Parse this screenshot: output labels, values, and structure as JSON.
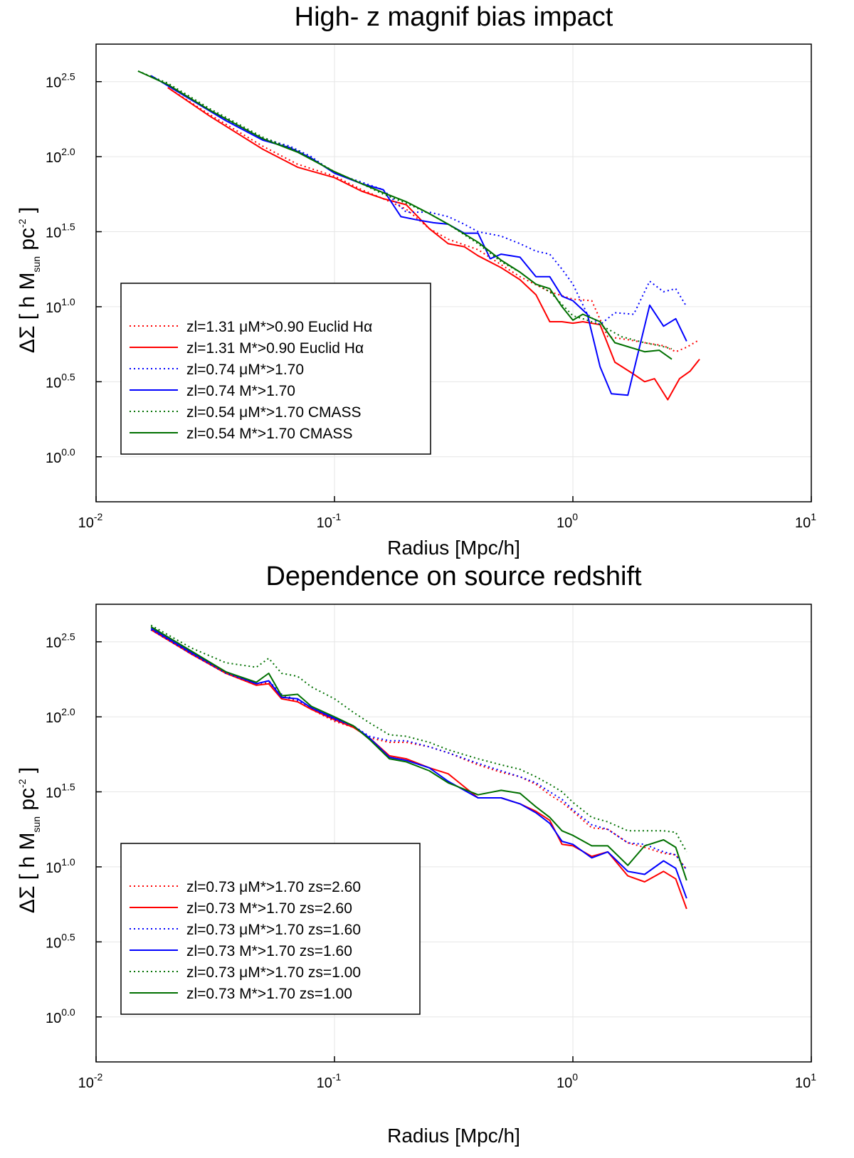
{
  "chart_data": [
    {
      "type": "line",
      "title": "High- z magnif bias impact",
      "xlabel": "Radius [Mpc/h]",
      "ylabel": "[ h M_sun pc^-2 ]",
      "ylabel_symbol": "ΔΣ",
      "ylabel_parts": {
        "open": "[ h M",
        "sub": "sun",
        "mid": " pc",
        "sup": "-2",
        "close": " ]"
      },
      "x_scale": "log10",
      "y_scale": "log10",
      "xlim": [
        0.01,
        10
      ],
      "ylim_log10": [
        -0.3,
        2.75
      ],
      "x_ticks": [
        {
          "base": "10",
          "exp": "-2",
          "value": 0.01
        },
        {
          "base": "10",
          "exp": "-1",
          "value": 0.1
        },
        {
          "base": "10",
          "exp": "0",
          "value": 1
        },
        {
          "base": "10",
          "exp": "1",
          "value": 10
        }
      ],
      "y_ticks": [
        {
          "base": "10",
          "exp": "0.0",
          "value": 0.0
        },
        {
          "base": "10",
          "exp": "0.5",
          "value": 0.5
        },
        {
          "base": "10",
          "exp": "1.0",
          "value": 1.0
        },
        {
          "base": "10",
          "exp": "1.5",
          "value": 1.5
        },
        {
          "base": "10",
          "exp": "2.0",
          "value": 2.0
        },
        {
          "base": "10",
          "exp": "2.5",
          "value": 2.5
        }
      ],
      "grid": true,
      "legend_position": "lower-left",
      "series": [
        {
          "name": "zl=1.31  μM*>0.90 Euclid Hα",
          "color": "#ff0000",
          "style": "dotted",
          "x": [
            0.02,
            0.03,
            0.05,
            0.07,
            0.1,
            0.13,
            0.16,
            0.2,
            0.25,
            0.3,
            0.4,
            0.5,
            0.6,
            0.8,
            1.0,
            1.2,
            1.4,
            1.7,
            2.0,
            2.4,
            2.7,
            3.0,
            3.4
          ],
          "log10_y": [
            2.46,
            2.28,
            2.07,
            1.95,
            1.87,
            1.78,
            1.72,
            1.65,
            1.52,
            1.45,
            1.38,
            1.28,
            1.2,
            1.1,
            1.05,
            1.04,
            0.8,
            0.78,
            0.76,
            0.74,
            0.7,
            0.73,
            0.78
          ]
        },
        {
          "name": "zl=1.31    M*>0.90 Euclid Hα",
          "color": "#ff0000",
          "style": "solid",
          "x": [
            0.02,
            0.03,
            0.05,
            0.07,
            0.1,
            0.13,
            0.16,
            0.2,
            0.25,
            0.3,
            0.35,
            0.4,
            0.5,
            0.6,
            0.7,
            0.8,
            0.9,
            1.0,
            1.1,
            1.3,
            1.5,
            1.8,
            2.0,
            2.2,
            2.5,
            2.8,
            3.1,
            3.4
          ],
          "log10_y": [
            2.46,
            2.27,
            2.05,
            1.93,
            1.86,
            1.77,
            1.72,
            1.68,
            1.52,
            1.42,
            1.4,
            1.34,
            1.26,
            1.18,
            1.08,
            0.9,
            0.9,
            0.89,
            0.9,
            0.88,
            0.63,
            0.55,
            0.5,
            0.52,
            0.38,
            0.52,
            0.57,
            0.65
          ]
        },
        {
          "name": "zl=0.74  μM*>1.70",
          "color": "#0000ff",
          "style": "dotted",
          "x": [
            0.017,
            0.025,
            0.035,
            0.05,
            0.065,
            0.08,
            0.1,
            0.13,
            0.16,
            0.2,
            0.25,
            0.3,
            0.35,
            0.4,
            0.5,
            0.6,
            0.7,
            0.8,
            0.9,
            1.0,
            1.15,
            1.3,
            1.5,
            1.8,
            2.1,
            2.4,
            2.7,
            3.0
          ],
          "log10_y": [
            2.54,
            2.38,
            2.25,
            2.12,
            2.07,
            2.0,
            1.89,
            1.83,
            1.78,
            1.63,
            1.63,
            1.6,
            1.55,
            1.5,
            1.47,
            1.42,
            1.37,
            1.35,
            1.25,
            1.15,
            0.95,
            0.88,
            0.96,
            0.95,
            1.17,
            1.1,
            1.12,
            1.0
          ]
        },
        {
          "name": "zl=0.74    M*>1.70",
          "color": "#0000ff",
          "style": "solid",
          "x": [
            0.017,
            0.025,
            0.035,
            0.05,
            0.065,
            0.08,
            0.1,
            0.13,
            0.16,
            0.19,
            0.22,
            0.26,
            0.3,
            0.35,
            0.4,
            0.45,
            0.5,
            0.6,
            0.7,
            0.8,
            0.9,
            1.0,
            1.15,
            1.3,
            1.45,
            1.7,
            2.1,
            2.4,
            2.7,
            3.0
          ],
          "log10_y": [
            2.54,
            2.38,
            2.24,
            2.11,
            2.06,
            1.99,
            1.89,
            1.82,
            1.78,
            1.6,
            1.58,
            1.56,
            1.55,
            1.49,
            1.49,
            1.32,
            1.35,
            1.33,
            1.2,
            1.2,
            1.07,
            1.04,
            0.95,
            0.6,
            0.42,
            0.41,
            1.01,
            0.87,
            0.92,
            0.77
          ]
        },
        {
          "name": "zl=0.54  μM*>1.70 CMASS",
          "color": "#007000",
          "style": "dotted",
          "x": [
            0.015,
            0.02,
            0.03,
            0.05,
            0.07,
            0.1,
            0.13,
            0.16,
            0.2,
            0.25,
            0.3,
            0.4,
            0.5,
            0.6,
            0.7,
            0.8,
            1.0,
            1.1,
            1.3,
            1.6,
            2.0,
            2.3,
            2.6
          ],
          "log10_y": [
            2.57,
            2.49,
            2.32,
            2.13,
            2.04,
            1.9,
            1.82,
            1.75,
            1.69,
            1.62,
            1.55,
            1.42,
            1.3,
            1.23,
            1.15,
            1.1,
            0.94,
            0.92,
            0.88,
            0.8,
            0.76,
            0.74,
            0.72
          ]
        },
        {
          "name": "zl=0.54    M*>1.70 CMASS",
          "color": "#007000",
          "style": "solid",
          "x": [
            0.015,
            0.02,
            0.03,
            0.05,
            0.07,
            0.1,
            0.13,
            0.16,
            0.2,
            0.25,
            0.3,
            0.4,
            0.5,
            0.6,
            0.7,
            0.8,
            0.9,
            1.0,
            1.1,
            1.3,
            1.5,
            2.0,
            2.3,
            2.6
          ],
          "log10_y": [
            2.57,
            2.48,
            2.31,
            2.12,
            2.03,
            1.9,
            1.82,
            1.76,
            1.7,
            1.62,
            1.55,
            1.43,
            1.31,
            1.23,
            1.15,
            1.12,
            1.0,
            0.91,
            0.95,
            0.9,
            0.76,
            0.7,
            0.71,
            0.65
          ]
        }
      ]
    },
    {
      "type": "line",
      "title": "Dependence on source redshift",
      "xlabel": "Radius [Mpc/h]",
      "ylabel": "[ h M_sun pc^-2 ]",
      "ylabel_symbol": "ΔΣ",
      "ylabel_parts": {
        "open": "[ h M",
        "sub": "sun",
        "mid": " pc",
        "sup": "-2",
        "close": " ]"
      },
      "x_scale": "log10",
      "y_scale": "log10",
      "xlim": [
        0.01,
        10
      ],
      "ylim_log10": [
        -0.3,
        2.75
      ],
      "x_ticks": [
        {
          "base": "10",
          "exp": "-2",
          "value": 0.01
        },
        {
          "base": "10",
          "exp": "-1",
          "value": 0.1
        },
        {
          "base": "10",
          "exp": "0",
          "value": 1
        },
        {
          "base": "10",
          "exp": "1",
          "value": 10
        }
      ],
      "y_ticks": [
        {
          "base": "10",
          "exp": "0.0",
          "value": 0.0
        },
        {
          "base": "10",
          "exp": "0.5",
          "value": 0.5
        },
        {
          "base": "10",
          "exp": "1.0",
          "value": 1.0
        },
        {
          "base": "10",
          "exp": "1.5",
          "value": 1.5
        },
        {
          "base": "10",
          "exp": "2.0",
          "value": 2.0
        },
        {
          "base": "10",
          "exp": "2.5",
          "value": 2.5
        }
      ],
      "grid": true,
      "legend_position": "lower-left",
      "series": [
        {
          "name": "zl=0.73  μM*>1.70 zs=2.60",
          "color": "#ff0000",
          "style": "dotted",
          "x": [
            0.017,
            0.025,
            0.035,
            0.047,
            0.053,
            0.06,
            0.07,
            0.08,
            0.1,
            0.12,
            0.14,
            0.17,
            0.2,
            0.25,
            0.3,
            0.4,
            0.5,
            0.6,
            0.7,
            0.8,
            0.9,
            1.0,
            1.2,
            1.4,
            1.7,
            2.0,
            2.4,
            2.7,
            3.0
          ],
          "log10_y": [
            2.58,
            2.42,
            2.29,
            2.21,
            2.23,
            2.14,
            2.1,
            2.05,
            1.97,
            1.93,
            1.86,
            1.83,
            1.83,
            1.8,
            1.76,
            1.68,
            1.63,
            1.6,
            1.55,
            1.48,
            1.43,
            1.37,
            1.26,
            1.25,
            1.16,
            1.13,
            1.09,
            1.08,
            0.98
          ]
        },
        {
          "name": "zl=0.73    M*>1.70 zs=2.60",
          "color": "#ff0000",
          "style": "solid",
          "x": [
            0.017,
            0.025,
            0.035,
            0.047,
            0.053,
            0.06,
            0.07,
            0.08,
            0.1,
            0.12,
            0.14,
            0.17,
            0.2,
            0.25,
            0.3,
            0.4,
            0.5,
            0.6,
            0.7,
            0.8,
            0.9,
            1.0,
            1.2,
            1.4,
            1.7,
            2.0,
            2.4,
            2.7,
            3.0
          ],
          "log10_y": [
            2.58,
            2.42,
            2.29,
            2.21,
            2.22,
            2.12,
            2.1,
            2.05,
            1.98,
            1.93,
            1.86,
            1.74,
            1.72,
            1.66,
            1.62,
            1.46,
            1.46,
            1.42,
            1.37,
            1.31,
            1.15,
            1.14,
            1.07,
            1.1,
            0.94,
            0.9,
            0.97,
            0.92,
            0.72
          ]
        },
        {
          "name": "zl=0.73  μM*>1.70 zs=1.60",
          "color": "#0000ff",
          "style": "dotted",
          "x": [
            0.017,
            0.025,
            0.035,
            0.047,
            0.053,
            0.06,
            0.07,
            0.08,
            0.1,
            0.12,
            0.14,
            0.17,
            0.2,
            0.25,
            0.3,
            0.4,
            0.5,
            0.6,
            0.7,
            0.8,
            0.9,
            1.0,
            1.2,
            1.4,
            1.7,
            2.0,
            2.4,
            2.7,
            3.0
          ],
          "log10_y": [
            2.58,
            2.42,
            2.29,
            2.22,
            2.24,
            2.15,
            2.11,
            2.06,
            1.98,
            1.94,
            1.87,
            1.84,
            1.84,
            1.8,
            1.76,
            1.69,
            1.64,
            1.6,
            1.56,
            1.5,
            1.45,
            1.38,
            1.28,
            1.25,
            1.16,
            1.15,
            1.1,
            1.08,
            0.98
          ]
        },
        {
          "name": "zl=0.73    M*>1.70 zs=1.60",
          "color": "#0000ff",
          "style": "solid",
          "x": [
            0.017,
            0.025,
            0.035,
            0.047,
            0.053,
            0.06,
            0.07,
            0.08,
            0.1,
            0.12,
            0.14,
            0.17,
            0.2,
            0.25,
            0.3,
            0.4,
            0.5,
            0.6,
            0.7,
            0.8,
            0.9,
            1.0,
            1.2,
            1.4,
            1.7,
            2.0,
            2.4,
            2.7,
            3.0
          ],
          "log10_y": [
            2.59,
            2.43,
            2.3,
            2.22,
            2.24,
            2.13,
            2.12,
            2.06,
            1.99,
            1.94,
            1.86,
            1.73,
            1.71,
            1.66,
            1.57,
            1.46,
            1.46,
            1.42,
            1.36,
            1.29,
            1.17,
            1.15,
            1.06,
            1.1,
            0.97,
            0.95,
            1.04,
            0.99,
            0.79
          ]
        },
        {
          "name": "zl=0.73  μM*>1.70 zs=1.00",
          "color": "#007000",
          "style": "dotted",
          "x": [
            0.017,
            0.025,
            0.035,
            0.047,
            0.053,
            0.06,
            0.07,
            0.08,
            0.1,
            0.12,
            0.14,
            0.17,
            0.2,
            0.25,
            0.3,
            0.4,
            0.5,
            0.6,
            0.7,
            0.8,
            0.9,
            1.0,
            1.2,
            1.4,
            1.7,
            2.0,
            2.4,
            2.7,
            3.0
          ],
          "log10_y": [
            2.61,
            2.46,
            2.36,
            2.33,
            2.39,
            2.29,
            2.27,
            2.2,
            2.12,
            2.03,
            1.96,
            1.88,
            1.87,
            1.83,
            1.78,
            1.72,
            1.68,
            1.65,
            1.6,
            1.55,
            1.5,
            1.43,
            1.33,
            1.3,
            1.24,
            1.24,
            1.24,
            1.23,
            1.1
          ]
        },
        {
          "name": "zl=0.73    M*>1.70 zs=1.00",
          "color": "#007000",
          "style": "solid",
          "x": [
            0.017,
            0.025,
            0.035,
            0.047,
            0.053,
            0.06,
            0.07,
            0.08,
            0.1,
            0.12,
            0.14,
            0.17,
            0.2,
            0.25,
            0.3,
            0.4,
            0.5,
            0.6,
            0.7,
            0.8,
            0.9,
            1.0,
            1.2,
            1.4,
            1.7,
            2.0,
            2.4,
            2.7,
            3.0
          ],
          "log10_y": [
            2.6,
            2.44,
            2.3,
            2.23,
            2.29,
            2.14,
            2.15,
            2.07,
            2.0,
            1.94,
            1.85,
            1.72,
            1.7,
            1.64,
            1.56,
            1.48,
            1.51,
            1.49,
            1.4,
            1.33,
            1.24,
            1.21,
            1.14,
            1.14,
            1.01,
            1.14,
            1.18,
            1.13,
            0.91
          ]
        }
      ]
    }
  ]
}
